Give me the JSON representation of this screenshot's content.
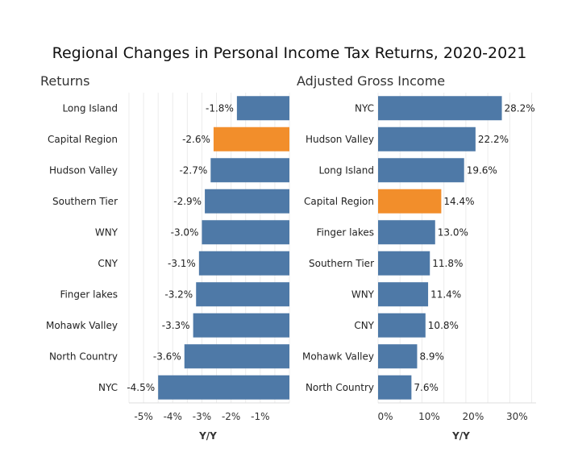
{
  "chart_data": [
    {
      "type": "bar",
      "orientation": "horizontal",
      "title": "Returns",
      "xlabel": "Y/Y",
      "categories": [
        "Long Island",
        "Capital Region",
        "Hudson Valley",
        "Southern Tier",
        "WNY",
        "CNY",
        "Finger lakes",
        "Mohawk Valley",
        "North Country",
        "NYC"
      ],
      "values": [
        -1.8,
        -2.6,
        -2.7,
        -2.9,
        -3.0,
        -3.1,
        -3.2,
        -3.3,
        -3.6,
        -4.5
      ],
      "labels": [
        "-1.8%",
        "-2.6%",
        "-2.7%",
        "-2.9%",
        "-3.0%",
        "-3.1%",
        "-3.2%",
        "-3.3%",
        "-3.6%",
        "-4.5%"
      ],
      "highlight": "Capital Region",
      "xlim": [
        -5.5,
        0
      ],
      "ticks": [
        -5,
        -4,
        -3,
        -2,
        -1
      ],
      "tick_labels": [
        "-5%",
        "-4%",
        "-3%",
        "-2%",
        "-1%"
      ]
    },
    {
      "type": "bar",
      "orientation": "horizontal",
      "title": "Adjusted Gross Income",
      "xlabel": "Y/Y",
      "categories": [
        "NYC",
        "Hudson Valley",
        "Long Island",
        "Capital Region",
        "Finger lakes",
        "Southern Tier",
        "WNY",
        "CNY",
        "Mohawk Valley",
        "North Country"
      ],
      "values": [
        28.2,
        22.2,
        19.6,
        14.4,
        13.0,
        11.8,
        11.4,
        10.8,
        8.9,
        7.6
      ],
      "labels": [
        "28.2%",
        "22.2%",
        "19.6%",
        "14.4%",
        "13.0%",
        "11.8%",
        "11.4%",
        "10.8%",
        "8.9%",
        "7.6%"
      ],
      "highlight": "Capital Region",
      "xlim": [
        0,
        36
      ],
      "ticks": [
        0,
        10,
        20,
        30
      ],
      "tick_labels": [
        "0%",
        "10%",
        "20%",
        "30%"
      ]
    }
  ],
  "title": "Regional Changes in Personal Income Tax Returns, 2020-2021",
  "colors": {
    "bar": "#4e79a7",
    "highlight": "#f28e2b",
    "grid": "#ececec"
  }
}
